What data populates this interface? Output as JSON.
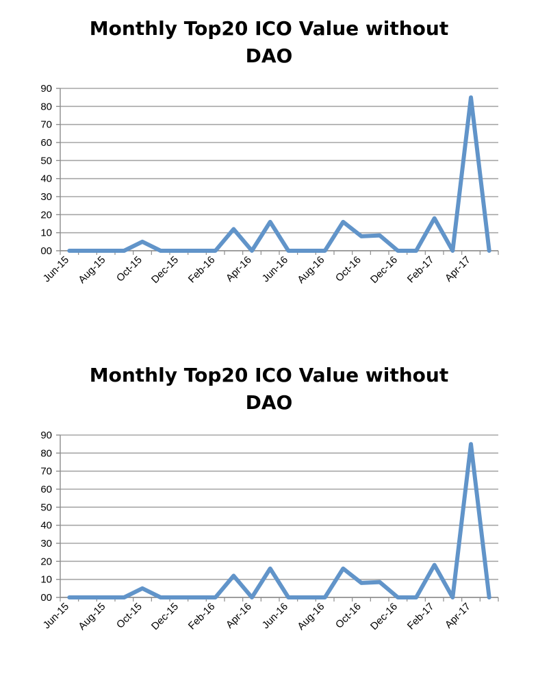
{
  "chart_data": [
    {
      "type": "line",
      "title": "Monthly Top20 ICO Value without DAO",
      "xlabel": "",
      "ylabel": "",
      "x": [
        "Jun-15",
        "Jul-15",
        "Aug-15",
        "Sep-15",
        "Oct-15",
        "Nov-15",
        "Dec-15",
        "Jan-16",
        "Feb-16",
        "Mar-16",
        "Apr-16",
        "May-16",
        "Jun-16",
        "Jul-16",
        "Aug-16",
        "Sep-16",
        "Oct-16",
        "Nov-16",
        "Dec-16",
        "Jan-17",
        "Feb-17",
        "Mar-17",
        "Apr-17",
        "May-17"
      ],
      "x_tick_labels": [
        "Jun-15",
        "Aug-15",
        "Oct-15",
        "Dec-15",
        "Feb-16",
        "Apr-16",
        "Jun-16",
        "Aug-16",
        "Oct-16",
        "Dec-16",
        "Feb-17",
        "Apr-17"
      ],
      "series": [
        {
          "values": [
            0,
            0,
            0,
            0,
            5,
            0,
            0,
            0,
            0,
            12,
            0,
            16,
            0,
            0,
            0,
            16,
            8,
            8.5,
            0,
            0,
            18,
            0,
            85,
            0
          ]
        }
      ],
      "ylim": [
        0,
        90
      ],
      "yticks": [
        "00",
        "10",
        "20",
        "30",
        "40",
        "50",
        "60",
        "70",
        "80",
        "90"
      ],
      "grid": true,
      "legend": "none",
      "colors": {
        "line": "#6194c9",
        "grid": "#a6a6a6",
        "axis": "#8c8c8c"
      }
    },
    {
      "type": "line",
      "title": "Monthly Top20 ICO Value without DAO",
      "xlabel": "",
      "ylabel": "",
      "x": [
        "Jun-15",
        "Jul-15",
        "Aug-15",
        "Sep-15",
        "Oct-15",
        "Nov-15",
        "Dec-15",
        "Jan-16",
        "Feb-16",
        "Mar-16",
        "Apr-16",
        "May-16",
        "Jun-16",
        "Jul-16",
        "Aug-16",
        "Sep-16",
        "Oct-16",
        "Nov-16",
        "Dec-16",
        "Jan-17",
        "Feb-17",
        "Mar-17",
        "Apr-17",
        "May-17"
      ],
      "x_tick_labels": [
        "Jun-15",
        "Aug-15",
        "Oct-15",
        "Dec-15",
        "Feb-16",
        "Apr-16",
        "Jun-16",
        "Aug-16",
        "Oct-16",
        "Dec-16",
        "Feb-17",
        "Apr-17"
      ],
      "series": [
        {
          "values": [
            0,
            0,
            0,
            0,
            5,
            0,
            0,
            0,
            0,
            12,
            0,
            16,
            0,
            0,
            0,
            16,
            8,
            8.5,
            0,
            0,
            18,
            0,
            85,
            0
          ]
        }
      ],
      "ylim": [
        0,
        90
      ],
      "yticks": [
        "00",
        "10",
        "20",
        "30",
        "40",
        "50",
        "60",
        "70",
        "80",
        "90"
      ],
      "grid": true,
      "legend": "none",
      "colors": {
        "line": "#6194c9",
        "grid": "#a6a6a6",
        "axis": "#8c8c8c"
      }
    }
  ]
}
